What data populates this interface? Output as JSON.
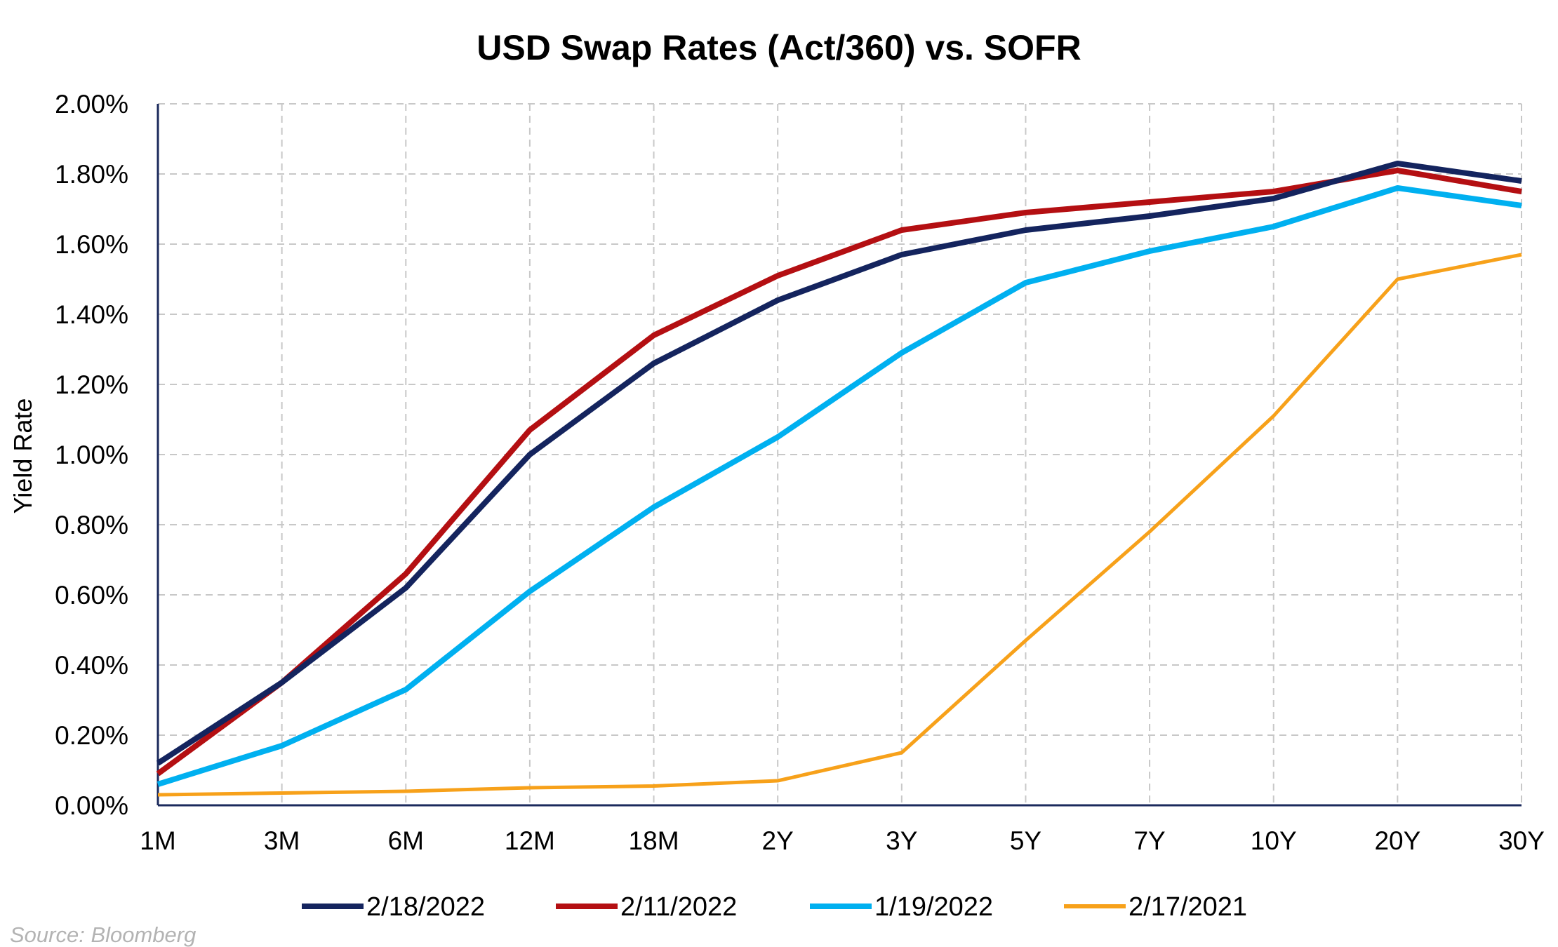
{
  "chart_data": {
    "type": "line",
    "title": "USD Swap Rates (Act/360) vs. SOFR",
    "xlabel": "",
    "ylabel": "Yield Rate",
    "categories": [
      "1M",
      "3M",
      "6M",
      "12M",
      "18M",
      "2Y",
      "3Y",
      "5Y",
      "7Y",
      "10Y",
      "20Y",
      "30Y"
    ],
    "ylim": [
      0,
      2.0
    ],
    "yticks": [
      0,
      0.2,
      0.4,
      0.6,
      0.8,
      1.0,
      1.2,
      1.4,
      1.6,
      1.8,
      2.0
    ],
    "ytick_labels": [
      "0.00%",
      "0.20%",
      "0.40%",
      "0.60%",
      "0.80%",
      "1.00%",
      "1.20%",
      "1.40%",
      "1.60%",
      "1.80%",
      "2.00%"
    ],
    "grid": true,
    "legend_position": "bottom",
    "series": [
      {
        "name": "2/18/2022",
        "color": "#14245e",
        "values": [
          0.12,
          0.35,
          0.62,
          1.0,
          1.26,
          1.44,
          1.57,
          1.64,
          1.68,
          1.73,
          1.83,
          1.78
        ]
      },
      {
        "name": "2/11/2022",
        "color": "#b40f12",
        "values": [
          0.09,
          0.35,
          0.66,
          1.07,
          1.34,
          1.51,
          1.64,
          1.69,
          1.72,
          1.75,
          1.81,
          1.75
        ]
      },
      {
        "name": "1/19/2022",
        "color": "#00b0f0",
        "values": [
          0.06,
          0.17,
          0.33,
          0.61,
          0.85,
          1.05,
          1.29,
          1.49,
          1.58,
          1.65,
          1.76,
          1.71
        ]
      },
      {
        "name": "2/17/2021",
        "color": "#f7a11a",
        "values": [
          0.03,
          0.035,
          0.04,
          0.05,
          0.055,
          0.07,
          0.15,
          0.47,
          0.78,
          1.11,
          1.5,
          1.57
        ]
      }
    ],
    "source": "Source: Bloomberg"
  }
}
